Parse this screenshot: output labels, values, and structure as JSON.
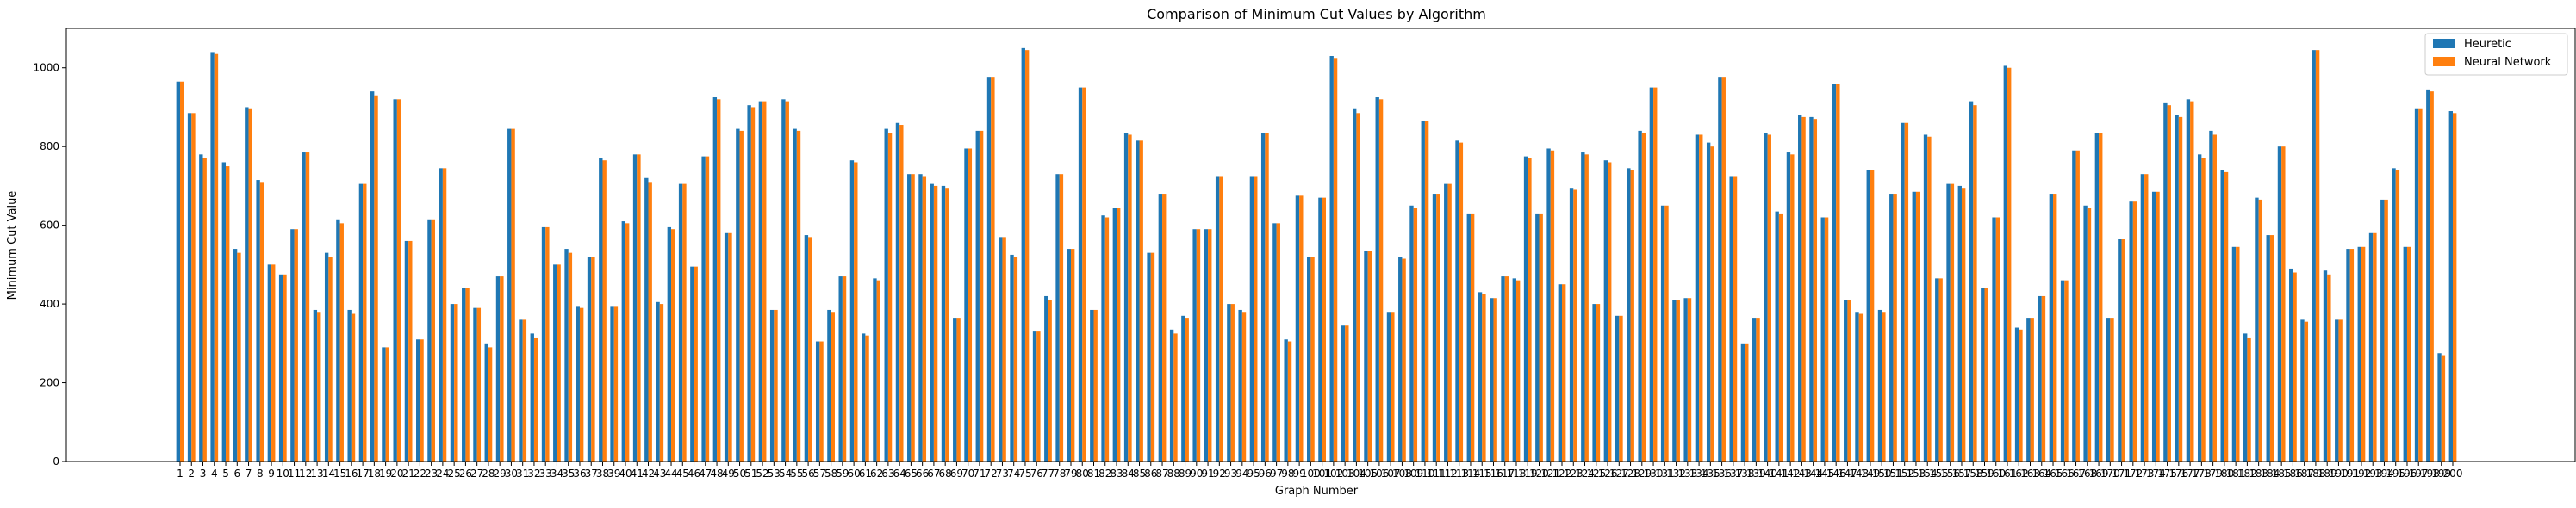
{
  "chart_data": {
    "type": "bar",
    "title": "Comparison of Minimum Cut Values by Algorithm",
    "xlabel": "Graph Number",
    "ylabel": "Minimum Cut Value",
    "ylim": [
      0,
      1100
    ],
    "yticks": [
      0,
      200,
      400,
      600,
      800,
      1000
    ],
    "legend_position": "top-right",
    "grid": false,
    "categories": [
      "1",
      "2",
      "3",
      "4",
      "5",
      "6",
      "7",
      "8",
      "9",
      "10",
      "11",
      "12",
      "13",
      "14",
      "15",
      "16",
      "17",
      "18",
      "19",
      "20",
      "21",
      "22",
      "23",
      "24",
      "25",
      "26",
      "27",
      "28",
      "29",
      "30",
      "31",
      "32",
      "33",
      "34",
      "35",
      "36",
      "37",
      "38",
      "39",
      "40",
      "41",
      "42",
      "43",
      "44",
      "45",
      "46",
      "47",
      "48",
      "49",
      "50",
      "51",
      "52",
      "53",
      "54",
      "55",
      "56",
      "57",
      "58",
      "59",
      "60",
      "61",
      "62",
      "63",
      "64",
      "65",
      "66",
      "67",
      "68",
      "69",
      "70",
      "71",
      "72",
      "73",
      "74",
      "75",
      "76",
      "77",
      "78",
      "79",
      "80",
      "81",
      "82",
      "83",
      "84",
      "85",
      "86",
      "87",
      "88",
      "89",
      "90",
      "91",
      "92",
      "93",
      "94",
      "95",
      "96",
      "97",
      "98",
      "99",
      "100",
      "101",
      "102",
      "103",
      "104",
      "105",
      "106",
      "107",
      "108",
      "109",
      "110",
      "111",
      "112",
      "113",
      "114",
      "115",
      "116",
      "117",
      "118",
      "119",
      "120",
      "121",
      "122",
      "123",
      "124",
      "125",
      "126",
      "127",
      "128",
      "129",
      "130",
      "131",
      "132",
      "133",
      "134",
      "135",
      "136",
      "137",
      "138",
      "139",
      "140",
      "141",
      "142",
      "143",
      "144",
      "145",
      "146",
      "147",
      "148",
      "149",
      "150",
      "151",
      "152",
      "153",
      "154",
      "155",
      "156",
      "157",
      "158",
      "159",
      "160",
      "161",
      "162",
      "163",
      "164",
      "165",
      "166",
      "167",
      "168",
      "169",
      "170",
      "171",
      "172",
      "173",
      "174",
      "175",
      "176",
      "177",
      "178",
      "179",
      "180",
      "181",
      "182",
      "183",
      "184",
      "185",
      "186",
      "187",
      "188",
      "189",
      "190",
      "191",
      "192",
      "193",
      "194",
      "195",
      "196",
      "197",
      "198",
      "199",
      "200"
    ],
    "series": [
      {
        "name": "Heuretic",
        "color": "#1f77b4",
        "values": [
          965,
          885,
          780,
          1040,
          760,
          540,
          900,
          715,
          500,
          475,
          590,
          785,
          385,
          530,
          615,
          385,
          705,
          940,
          290,
          920,
          560,
          310,
          615,
          745,
          400,
          440,
          390,
          300,
          470,
          845,
          360,
          325,
          595,
          500,
          540,
          395,
          520,
          770,
          395,
          610,
          780,
          720,
          405,
          595,
          705,
          495,
          775,
          925,
          580,
          845,
          905,
          915,
          385,
          920,
          845,
          575,
          305,
          385,
          470,
          765,
          325,
          465,
          845,
          860,
          730,
          730,
          705,
          700,
          365,
          795,
          840,
          975,
          570,
          525,
          1050,
          330,
          420,
          730,
          540,
          950,
          385,
          625,
          645,
          835,
          815,
          530,
          680,
          335,
          370,
          590,
          590,
          725,
          400,
          385,
          725,
          835,
          605,
          310,
          675,
          520,
          670,
          1030,
          345,
          895,
          535,
          925,
          380,
          520,
          650,
          865,
          680,
          705,
          815,
          630,
          430,
          415,
          470,
          465,
          775,
          630,
          795,
          450,
          695,
          785,
          400,
          765,
          370,
          745,
          840,
          950,
          650,
          410,
          415,
          830,
          810,
          975,
          725,
          300,
          365,
          835,
          635,
          785,
          880,
          875,
          620,
          960,
          410,
          380,
          740,
          385,
          680,
          860,
          685,
          830,
          465,
          705,
          700,
          915,
          440,
          620,
          1005,
          340,
          365,
          420,
          680,
          460,
          790,
          650,
          835,
          365,
          565,
          660,
          730,
          685,
          910,
          880,
          920,
          780,
          840,
          740,
          545,
          325,
          670,
          575,
          800,
          490,
          360,
          1045,
          485,
          360,
          540,
          545,
          580,
          665,
          745,
          545,
          895,
          945,
          275,
          890
        ],
        "_comment_unused": false
      },
      {
        "name": "Neural Network",
        "color": "#ff7f0e",
        "values": [
          965,
          885,
          770,
          1035,
          750,
          530,
          895,
          710,
          500,
          475,
          590,
          785,
          380,
          520,
          605,
          375,
          705,
          930,
          290,
          920,
          560,
          310,
          615,
          745,
          400,
          440,
          390,
          290,
          470,
          845,
          360,
          315,
          595,
          500,
          530,
          390,
          520,
          765,
          395,
          605,
          780,
          710,
          400,
          590,
          705,
          495,
          775,
          920,
          580,
          840,
          900,
          915,
          385,
          915,
          840,
          570,
          305,
          380,
          470,
          760,
          320,
          460,
          835,
          855,
          730,
          725,
          700,
          695,
          365,
          795,
          840,
          975,
          570,
          520,
          1045,
          330,
          410,
          730,
          540,
          950,
          385,
          620,
          645,
          830,
          815,
          530,
          680,
          325,
          365,
          590,
          590,
          725,
          400,
          380,
          725,
          835,
          605,
          305,
          675,
          520,
          670,
          1025,
          345,
          885,
          535,
          920,
          380,
          515,
          645,
          865,
          680,
          705,
          810,
          630,
          425,
          415,
          470,
          460,
          770,
          630,
          790,
          450,
          690,
          780,
          400,
          760,
          370,
          740,
          835,
          950,
          650,
          410,
          415,
          830,
          800,
          975,
          725,
          300,
          365,
          830,
          630,
          780,
          875,
          870,
          620,
          960,
          410,
          375,
          740,
          380,
          680,
          860,
          685,
          825,
          465,
          705,
          695,
          905,
          440,
          620,
          1000,
          335,
          365,
          420,
          680,
          460,
          790,
          645,
          835,
          365,
          565,
          660,
          730,
          685,
          905,
          875,
          915,
          770,
          830,
          735,
          545,
          315,
          665,
          575,
          800,
          480,
          355,
          1045,
          475,
          360,
          540,
          545,
          580,
          665,
          740,
          545,
          895,
          940,
          270,
          885
        ]
      }
    ]
  }
}
